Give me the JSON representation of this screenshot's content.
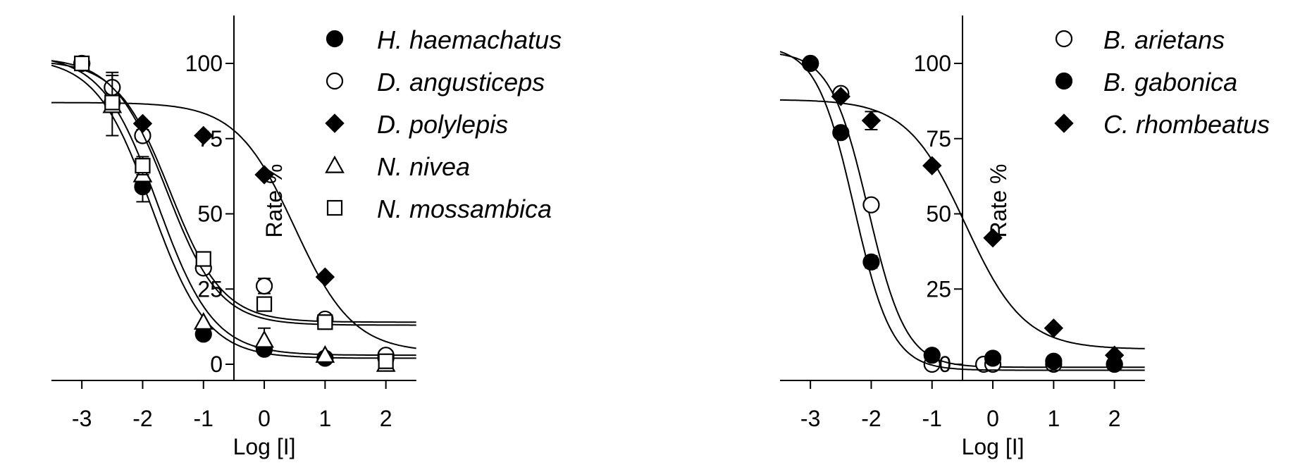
{
  "chart_data": [
    {
      "type": "scatter",
      "xlabel": "Log [I]",
      "ylabel": "Rate %",
      "xlim": [
        -3.5,
        2.5
      ],
      "ylim": [
        -5,
        115
      ],
      "xticks": [
        "-3",
        "-2",
        "-1",
        "0",
        "1",
        "2"
      ],
      "yticks": [
        "0",
        "25",
        "50",
        "75",
        "100"
      ],
      "legend_position": "top-right",
      "series": [
        {
          "name": "H. haemachatus",
          "marker": "circle-filled",
          "x": [
            -3,
            -2.5,
            -2,
            -1,
            0,
            1,
            2
          ],
          "y": [
            100,
            87,
            59,
            10,
            5,
            2,
            2
          ],
          "error": [
            0,
            3,
            5,
            1.5,
            1,
            0.5,
            0.5
          ],
          "fit": {
            "top": 102,
            "bottom": 2,
            "logIC50": -1.85,
            "hill": 0.95
          }
        },
        {
          "name": "D. angusticeps",
          "marker": "circle-open",
          "x": [
            -3,
            -2.5,
            -2,
            -1,
            0,
            1,
            2
          ],
          "y": [
            100,
            92,
            76,
            32,
            26,
            15,
            3
          ],
          "error": [
            0,
            5,
            2,
            1.5,
            2.5,
            1,
            0.5
          ],
          "fit": {
            "top": 101,
            "bottom": 14,
            "logIC50": -1.55,
            "hill": 1.0
          }
        },
        {
          "name": "D. polylepis",
          "marker": "diamond-filled",
          "x": [
            -2,
            -1,
            0,
            1
          ],
          "y": [
            80,
            76,
            63,
            29
          ],
          "error": [
            0,
            0,
            0,
            0
          ],
          "fit": {
            "top": 87,
            "bottom": 4,
            "logIC50": 0.5,
            "hill": 0.9
          }
        },
        {
          "name": "N. nivea",
          "marker": "triangle-open",
          "x": [
            -2.5,
            -2,
            -1,
            0,
            1,
            2
          ],
          "y": [
            86,
            63,
            14,
            8,
            3,
            0
          ],
          "error": [
            10,
            4,
            1,
            4,
            0.5,
            0.5
          ],
          "fit": {
            "top": 103,
            "bottom": 3,
            "logIC50": -1.75,
            "hill": 0.95
          }
        },
        {
          "name": "N. mossambica",
          "marker": "square-open",
          "x": [
            -3,
            -2.5,
            -2,
            -1,
            0,
            1,
            2
          ],
          "y": [
            100,
            87,
            66,
            35,
            20,
            14,
            1
          ],
          "error": [
            0,
            2,
            3,
            1,
            1,
            1,
            0.5
          ],
          "fit": {
            "top": 102,
            "bottom": 13,
            "logIC50": -1.6,
            "hill": 1.0
          }
        }
      ]
    },
    {
      "type": "scatter",
      "xlabel": "Log [I]",
      "ylabel": "Rate %",
      "xlim": [
        -3.5,
        2.5
      ],
      "ylim": [
        -5,
        115
      ],
      "xticks": [
        "-3",
        "-2",
        "-1",
        "0",
        "1",
        "2"
      ],
      "yticks": [
        "0",
        "25",
        "50",
        "75",
        "100"
      ],
      "legend_position": "top-right",
      "series": [
        {
          "name": "B. arietans",
          "marker": "circle-open",
          "x": [
            -3,
            -2.5,
            -2,
            -1,
            -0.15,
            0,
            1,
            2
          ],
          "y": [
            100,
            90,
            53,
            0,
            0,
            0,
            0,
            0
          ],
          "error": [
            0,
            0,
            0,
            0,
            0,
            0,
            0,
            0
          ],
          "fit": {
            "top": 104,
            "bottom": -1,
            "logIC50": -2.05,
            "hill": 1.4
          }
        },
        {
          "name": "B. gabonica",
          "marker": "circle-filled",
          "x": [
            -3,
            -2.5,
            -2,
            -1,
            0,
            1,
            2
          ],
          "y": [
            100,
            77,
            34,
            3,
            2,
            1,
            0
          ],
          "error": [
            0,
            1,
            2,
            0.5,
            0.5,
            0.5,
            0.5
          ],
          "fit": {
            "top": 106,
            "bottom": -2,
            "logIC50": -2.28,
            "hill": 1.4
          }
        },
        {
          "name": "C. rhombeatus",
          "marker": "diamond-filled",
          "x": [
            -2.5,
            -2,
            -1,
            0,
            1,
            2
          ],
          "y": [
            89,
            81,
            66,
            42,
            12,
            3
          ],
          "error": [
            1,
            3,
            0,
            0,
            0,
            0
          ],
          "fit": {
            "top": 88,
            "bottom": 5,
            "logIC50": -0.45,
            "hill": 0.9
          }
        }
      ]
    }
  ]
}
